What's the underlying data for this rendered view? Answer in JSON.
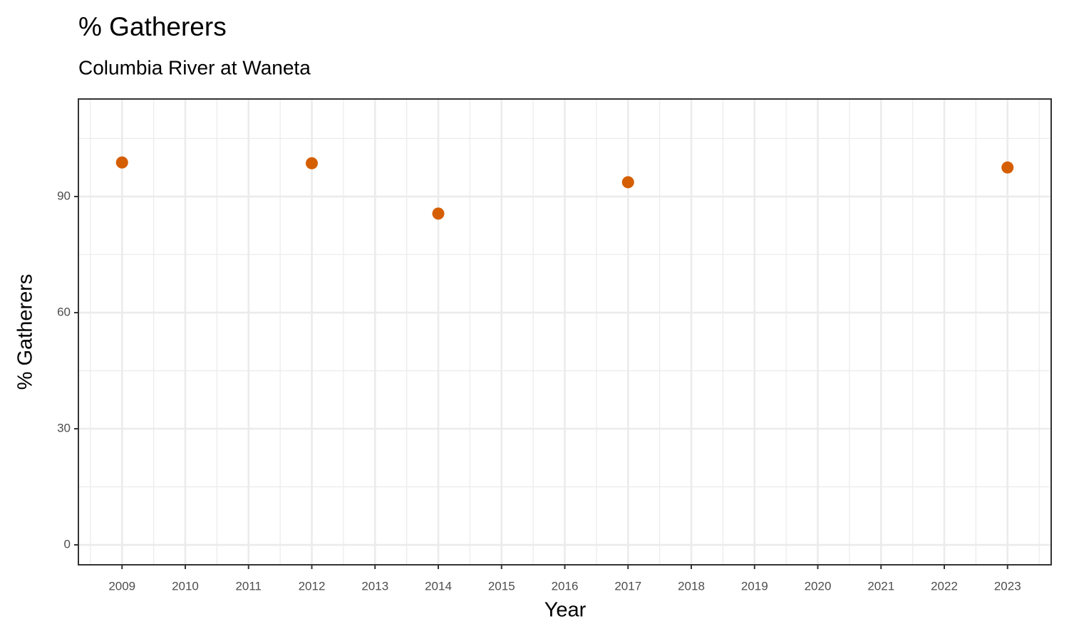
{
  "chart_data": {
    "type": "scatter",
    "title": "% Gatherers",
    "subtitle": "Columbia River at Waneta",
    "x_label": "Year",
    "y_label": "% Gatherers",
    "x": [
      2009,
      2012,
      2014,
      2017,
      2023
    ],
    "values": [
      98.8,
      98.6,
      85.6,
      93.7,
      97.5
    ],
    "color": "#d55e00",
    "xlim": [
      2008.31,
      2023.69
    ],
    "xticks": [
      2009,
      2010,
      2011,
      2012,
      2013,
      2014,
      2015,
      2016,
      2017,
      2018,
      2019,
      2020,
      2021,
      2022,
      2023
    ],
    "ylim": [
      -5.15,
      115.2
    ],
    "yticks": [
      0,
      30,
      60,
      90
    ],
    "grid": true
  }
}
